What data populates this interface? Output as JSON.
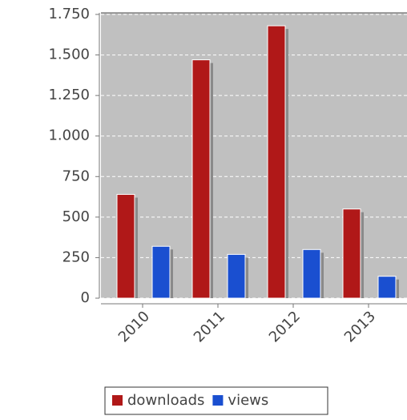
{
  "chart_data": {
    "type": "bar",
    "categories": [
      "2010",
      "2011",
      "2012",
      "2013"
    ],
    "series": [
      {
        "name": "downloads",
        "color": "#b01818",
        "values": [
          640,
          1470,
          1680,
          550
        ]
      },
      {
        "name": "views",
        "color": "#1a4fd0",
        "values": [
          320,
          270,
          300,
          135
        ]
      }
    ],
    "ylim": [
      0,
      1750
    ],
    "yticks": [
      0,
      250,
      500,
      750,
      {
        "value": 1000,
        "label": "1.000"
      },
      {
        "value": 1250,
        "label": "1.250"
      },
      {
        "value": 1500,
        "label": "1.500"
      },
      {
        "value": 1750,
        "label": "1.750"
      }
    ],
    "grid": true,
    "legend": "bottom"
  }
}
